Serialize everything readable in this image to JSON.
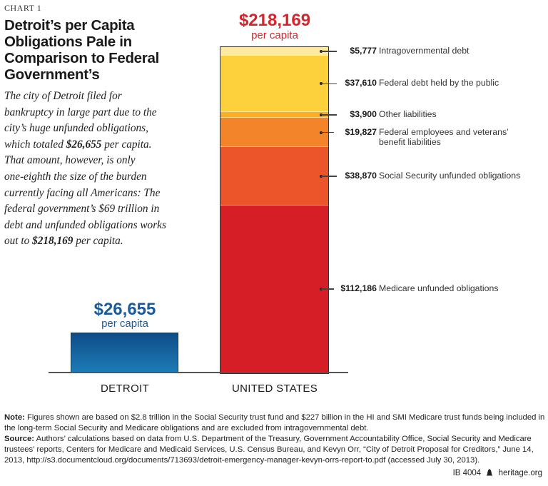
{
  "chart_label": "CHART 1",
  "title": "Detroit’s per Capita Obligations Pale in Comparison to Federal Government’s",
  "description": [
    [
      {
        "t": "The city of Detroit filed for"
      }
    ],
    [
      {
        "t": "bankruptcy in large part due to the"
      }
    ],
    [
      {
        "t": "city’s huge unfunded obligations,"
      }
    ],
    [
      {
        "t": "which totaled "
      },
      {
        "t": "$26,655",
        "b": true
      },
      {
        "t": " per capita."
      }
    ],
    [
      {
        "t": "That amount, however, is only"
      }
    ],
    [
      {
        "t": "one-eighth the size of the burden"
      }
    ],
    [
      {
        "t": "currently facing all Americans: The"
      }
    ],
    [
      {
        "t": "federal government’s $69 trillion in"
      }
    ],
    [
      {
        "t": "debt and unfunded obligations works"
      }
    ],
    [
      {
        "t": "out to "
      },
      {
        "t": "$218,169",
        "b": true
      },
      {
        "t": " per capita."
      }
    ]
  ],
  "chart_data": {
    "type": "bar",
    "stacked": true,
    "categories": [
      "DETROIT",
      "UNITED STATES"
    ],
    "totals": [
      {
        "value": 26655,
        "label": "$26,655",
        "sub": "per capita",
        "color": "#1c5a9a"
      },
      {
        "value": 218169,
        "label": "$218,169",
        "sub": "per capita",
        "color": "#d9232b"
      }
    ],
    "detroit": {
      "value": 26655,
      "color_top": "#0e4c86",
      "color_bottom": "#1d7cb8"
    },
    "united_states_segments": [
      {
        "name": "Intragovernmental debt",
        "value": 5777,
        "label": "$5,777",
        "color": "#fde9a0"
      },
      {
        "name": "Federal debt held by the public",
        "value": 37610,
        "label": "$37,610",
        "color": "#fdd13b"
      },
      {
        "name": "Other liabilities",
        "value": 3900,
        "label": "$3,900",
        "color": "#fbae22"
      },
      {
        "name": "Federal employees and veterans’ benefit liabilities",
        "value": 19827,
        "label": "$19,827",
        "color": "#f3842a"
      },
      {
        "name": "Social Security unfunded obligations",
        "value": 38870,
        "label": "$38,870",
        "color": "#ec5529"
      },
      {
        "name": "Medicare unfunded obligations",
        "value": 112186,
        "label": "$112,186",
        "color": "#d61e26"
      }
    ]
  },
  "notes": {
    "note_label": "Note:",
    "note": " Figures shown are based on $2.8 trillion in the Social Security trust fund and $227 billion in the HI and SMI Medicare trust funds being included in the long-term Social Security and Medicare obligations and are excluded from intragovernmental debt.",
    "source_label": "Source:",
    "source": " Authors’ calculations based on data from U.S. Department of the Treasury, Government Accountability Office, Social Security and Medicare trustees’ reports, Centers for Medicare and Medicaid Services, U.S. Census Bureau, and Kevyn Orr, “City of Detroit Proposal for Creditors,” June 14, 2013, http://s3.documentcloud.org/documents/713693/detroit-emergency-manager-kevyn-orrs-report-to.pdf (accessed July 30, 2013)."
  },
  "footer": {
    "id": "IB 4004",
    "site": "heritage.org",
    "icon": "liberty-bell-icon"
  }
}
